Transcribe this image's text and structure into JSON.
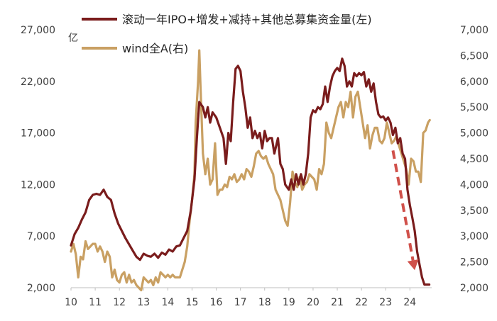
{
  "chart_data": {
    "type": "line",
    "title": "",
    "unit_left": "亿",
    "legend": [
      {
        "name": "滚动一年IPO+增发+减持+其他总募集资金量(左)",
        "color": "#7a1c1c"
      },
      {
        "name": "wind全A(右)",
        "color": "#c9a063"
      }
    ],
    "x_ticks": [
      "10",
      "11",
      "12",
      "13",
      "14",
      "15",
      "16",
      "17",
      "18",
      "19",
      "20",
      "21",
      "22",
      "23",
      "24"
    ],
    "x_range": [
      2010.0,
      2024.9
    ],
    "y_left": {
      "range": [
        2000,
        27000
      ],
      "ticks": [
        "2,000",
        "7,000",
        "12,000",
        "17,000",
        "22,000",
        "27,000"
      ],
      "tick_values": [
        2000,
        7000,
        12000,
        17000,
        22000,
        27000
      ]
    },
    "y_right": {
      "range": [
        2000,
        7000
      ],
      "ticks": [
        "2,000",
        "2,500",
        "3,000",
        "3,500",
        "4,000",
        "4,500",
        "5,000",
        "5,500",
        "6,000",
        "6,500",
        "7,000"
      ],
      "tick_values": [
        2000,
        2500,
        3000,
        3500,
        4000,
        4500,
        5000,
        5500,
        6000,
        6500,
        7000
      ]
    },
    "series": [
      {
        "name": "滚动一年IPO+增发+减持+其他总募集资金量(左)",
        "axis": "left",
        "color": "#7a1c1c",
        "points": [
          [
            2010.0,
            6100
          ],
          [
            2010.15,
            7200
          ],
          [
            2010.3,
            7800
          ],
          [
            2010.45,
            8600
          ],
          [
            2010.6,
            9300
          ],
          [
            2010.75,
            10500
          ],
          [
            2010.9,
            11000
          ],
          [
            2011.05,
            11100
          ],
          [
            2011.2,
            11000
          ],
          [
            2011.35,
            11500
          ],
          [
            2011.5,
            10800
          ],
          [
            2011.65,
            10500
          ],
          [
            2011.8,
            9200
          ],
          [
            2011.95,
            8200
          ],
          [
            2012.1,
            7500
          ],
          [
            2012.25,
            6800
          ],
          [
            2012.4,
            6200
          ],
          [
            2012.55,
            5600
          ],
          [
            2012.7,
            5000
          ],
          [
            2012.85,
            4700
          ],
          [
            2013.0,
            5300
          ],
          [
            2013.15,
            5100
          ],
          [
            2013.3,
            5000
          ],
          [
            2013.45,
            5300
          ],
          [
            2013.6,
            4900
          ],
          [
            2013.75,
            5400
          ],
          [
            2013.9,
            5200
          ],
          [
            2014.05,
            5700
          ],
          [
            2014.2,
            5500
          ],
          [
            2014.35,
            6000
          ],
          [
            2014.5,
            6100
          ],
          [
            2014.65,
            6800
          ],
          [
            2014.8,
            7500
          ],
          [
            2014.95,
            9500
          ],
          [
            2015.1,
            12500
          ],
          [
            2015.2,
            16500
          ],
          [
            2015.3,
            20000
          ],
          [
            2015.45,
            19500
          ],
          [
            2015.55,
            18500
          ],
          [
            2015.65,
            19500
          ],
          [
            2015.75,
            18000
          ],
          [
            2015.85,
            19000
          ],
          [
            2016.0,
            18500
          ],
          [
            2016.15,
            17500
          ],
          [
            2016.3,
            16500
          ],
          [
            2016.4,
            14000
          ],
          [
            2016.5,
            17000
          ],
          [
            2016.6,
            16200
          ],
          [
            2016.7,
            20000
          ],
          [
            2016.8,
            23200
          ],
          [
            2016.9,
            23500
          ],
          [
            2017.0,
            23000
          ],
          [
            2017.1,
            21000
          ],
          [
            2017.2,
            19500
          ],
          [
            2017.3,
            17500
          ],
          [
            2017.4,
            18500
          ],
          [
            2017.5,
            16500
          ],
          [
            2017.6,
            17200
          ],
          [
            2017.7,
            16500
          ],
          [
            2017.8,
            17000
          ],
          [
            2017.9,
            15500
          ],
          [
            2018.0,
            17200
          ],
          [
            2018.1,
            16200
          ],
          [
            2018.2,
            16500
          ],
          [
            2018.3,
            16500
          ],
          [
            2018.4,
            15000
          ],
          [
            2018.55,
            16500
          ],
          [
            2018.65,
            14000
          ],
          [
            2018.75,
            13500
          ],
          [
            2018.85,
            12000
          ],
          [
            2019.0,
            11500
          ],
          [
            2019.1,
            12500
          ],
          [
            2019.2,
            11500
          ],
          [
            2019.3,
            13000
          ],
          [
            2019.4,
            12000
          ],
          [
            2019.5,
            13000
          ],
          [
            2019.6,
            12000
          ],
          [
            2019.7,
            13000
          ],
          [
            2019.8,
            15000
          ],
          [
            2019.9,
            18500
          ],
          [
            2020.0,
            19200
          ],
          [
            2020.1,
            19000
          ],
          [
            2020.2,
            19500
          ],
          [
            2020.3,
            19300
          ],
          [
            2020.4,
            19800
          ],
          [
            2020.5,
            21500
          ],
          [
            2020.6,
            20000
          ],
          [
            2020.7,
            21500
          ],
          [
            2020.8,
            22500
          ],
          [
            2020.9,
            23000
          ],
          [
            2021.0,
            23300
          ],
          [
            2021.1,
            23000
          ],
          [
            2021.2,
            24200
          ],
          [
            2021.3,
            23500
          ],
          [
            2021.4,
            21500
          ],
          [
            2021.5,
            22000
          ],
          [
            2021.6,
            21500
          ],
          [
            2021.7,
            22800
          ],
          [
            2021.8,
            22500
          ],
          [
            2021.9,
            22800
          ],
          [
            2022.0,
            22600
          ],
          [
            2022.1,
            22900
          ],
          [
            2022.2,
            21500
          ],
          [
            2022.3,
            22200
          ],
          [
            2022.4,
            21000
          ],
          [
            2022.5,
            21800
          ],
          [
            2022.6,
            20000
          ],
          [
            2022.7,
            18800
          ],
          [
            2022.8,
            18500
          ],
          [
            2022.9,
            18600
          ],
          [
            2023.0,
            18200
          ],
          [
            2023.1,
            18500
          ],
          [
            2023.2,
            18000
          ],
          [
            2023.3,
            16800
          ],
          [
            2023.4,
            17500
          ],
          [
            2023.5,
            16000
          ],
          [
            2023.6,
            16500
          ],
          [
            2023.7,
            15000
          ],
          [
            2023.8,
            14500
          ],
          [
            2023.9,
            11500
          ],
          [
            2024.0,
            10000
          ],
          [
            2024.1,
            8800
          ],
          [
            2024.2,
            7500
          ],
          [
            2024.3,
            5500
          ],
          [
            2024.4,
            4200
          ],
          [
            2024.5,
            3000
          ],
          [
            2024.6,
            2300
          ],
          [
            2024.7,
            2300
          ],
          [
            2024.8,
            2300
          ]
        ]
      },
      {
        "name": "wind全A(右)",
        "axis": "right",
        "color": "#c9a063",
        "points": [
          [
            2010.0,
            2700
          ],
          [
            2010.1,
            2850
          ],
          [
            2010.2,
            2650
          ],
          [
            2010.3,
            2200
          ],
          [
            2010.4,
            2600
          ],
          [
            2010.5,
            2550
          ],
          [
            2010.6,
            2900
          ],
          [
            2010.7,
            2750
          ],
          [
            2010.8,
            2800
          ],
          [
            2010.9,
            2850
          ],
          [
            2011.0,
            2850
          ],
          [
            2011.1,
            2700
          ],
          [
            2011.2,
            2800
          ],
          [
            2011.3,
            2700
          ],
          [
            2011.4,
            2500
          ],
          [
            2011.5,
            2700
          ],
          [
            2011.6,
            2600
          ],
          [
            2011.7,
            2200
          ],
          [
            2011.8,
            2350
          ],
          [
            2011.9,
            2150
          ],
          [
            2012.0,
            2100
          ],
          [
            2012.1,
            2250
          ],
          [
            2012.2,
            2300
          ],
          [
            2012.3,
            2100
          ],
          [
            2012.4,
            2250
          ],
          [
            2012.5,
            2100
          ],
          [
            2012.6,
            2150
          ],
          [
            2012.7,
            2050
          ],
          [
            2012.8,
            2000
          ],
          [
            2012.9,
            1950
          ],
          [
            2013.0,
            2200
          ],
          [
            2013.1,
            2150
          ],
          [
            2013.2,
            2100
          ],
          [
            2013.3,
            2150
          ],
          [
            2013.4,
            2050
          ],
          [
            2013.5,
            2200
          ],
          [
            2013.6,
            2100
          ],
          [
            2013.7,
            2300
          ],
          [
            2013.8,
            2250
          ],
          [
            2013.9,
            2200
          ],
          [
            2014.0,
            2250
          ],
          [
            2014.1,
            2200
          ],
          [
            2014.2,
            2250
          ],
          [
            2014.3,
            2200
          ],
          [
            2014.4,
            2200
          ],
          [
            2014.5,
            2200
          ],
          [
            2014.6,
            2350
          ],
          [
            2014.7,
            2500
          ],
          [
            2014.8,
            2800
          ],
          [
            2014.9,
            3300
          ],
          [
            2015.0,
            3700
          ],
          [
            2015.1,
            4200
          ],
          [
            2015.15,
            5200
          ],
          [
            2015.25,
            6000
          ],
          [
            2015.3,
            6600
          ],
          [
            2015.35,
            5900
          ],
          [
            2015.45,
            4600
          ],
          [
            2015.55,
            4200
          ],
          [
            2015.65,
            4500
          ],
          [
            2015.75,
            4000
          ],
          [
            2015.85,
            4100
          ],
          [
            2015.95,
            4800
          ],
          [
            2016.05,
            3800
          ],
          [
            2016.15,
            3900
          ],
          [
            2016.25,
            3900
          ],
          [
            2016.35,
            4000
          ],
          [
            2016.45,
            3950
          ],
          [
            2016.55,
            4150
          ],
          [
            2016.65,
            4100
          ],
          [
            2016.75,
            4200
          ],
          [
            2016.85,
            4050
          ],
          [
            2016.95,
            4100
          ],
          [
            2017.05,
            4200
          ],
          [
            2017.15,
            4100
          ],
          [
            2017.25,
            4300
          ],
          [
            2017.35,
            4250
          ],
          [
            2017.45,
            4150
          ],
          [
            2017.55,
            4350
          ],
          [
            2017.65,
            4600
          ],
          [
            2017.75,
            4650
          ],
          [
            2017.85,
            4550
          ],
          [
            2017.95,
            4500
          ],
          [
            2018.05,
            4550
          ],
          [
            2018.15,
            4400
          ],
          [
            2018.25,
            4300
          ],
          [
            2018.35,
            4200
          ],
          [
            2018.45,
            3900
          ],
          [
            2018.55,
            3800
          ],
          [
            2018.65,
            3700
          ],
          [
            2018.75,
            3500
          ],
          [
            2018.85,
            3300
          ],
          [
            2018.95,
            3200
          ],
          [
            2019.05,
            3650
          ],
          [
            2019.15,
            4250
          ],
          [
            2019.25,
            4050
          ],
          [
            2019.35,
            3950
          ],
          [
            2019.45,
            4150
          ],
          [
            2019.55,
            3900
          ],
          [
            2019.65,
            4000
          ],
          [
            2019.75,
            4050
          ],
          [
            2019.85,
            4200
          ],
          [
            2019.95,
            4150
          ],
          [
            2020.05,
            4100
          ],
          [
            2020.15,
            3900
          ],
          [
            2020.25,
            4300
          ],
          [
            2020.35,
            4200
          ],
          [
            2020.45,
            4400
          ],
          [
            2020.55,
            5200
          ],
          [
            2020.65,
            5000
          ],
          [
            2020.75,
            4900
          ],
          [
            2020.85,
            5100
          ],
          [
            2020.95,
            5300
          ],
          [
            2021.05,
            5500
          ],
          [
            2021.15,
            5600
          ],
          [
            2021.25,
            5300
          ],
          [
            2021.35,
            5600
          ],
          [
            2021.45,
            5500
          ],
          [
            2021.55,
            5800
          ],
          [
            2021.65,
            5300
          ],
          [
            2021.75,
            5700
          ],
          [
            2021.85,
            5800
          ],
          [
            2021.95,
            5500
          ],
          [
            2022.05,
            5200
          ],
          [
            2022.15,
            4900
          ],
          [
            2022.25,
            5150
          ],
          [
            2022.35,
            4700
          ],
          [
            2022.45,
            4950
          ],
          [
            2022.55,
            5100
          ],
          [
            2022.65,
            5100
          ],
          [
            2022.75,
            4850
          ],
          [
            2022.85,
            4800
          ],
          [
            2022.95,
            4900
          ],
          [
            2023.05,
            5200
          ],
          [
            2023.15,
            5000
          ],
          [
            2023.25,
            4800
          ],
          [
            2023.35,
            4850
          ],
          [
            2023.45,
            4950
          ],
          [
            2023.55,
            4750
          ],
          [
            2023.65,
            4600
          ],
          [
            2023.75,
            4450
          ],
          [
            2023.85,
            4300
          ],
          [
            2023.95,
            4000
          ],
          [
            2024.05,
            4500
          ],
          [
            2024.15,
            4450
          ],
          [
            2024.25,
            4250
          ],
          [
            2024.35,
            4250
          ],
          [
            2024.45,
            4050
          ],
          [
            2024.55,
            5000
          ],
          [
            2024.65,
            5050
          ],
          [
            2024.75,
            5200
          ],
          [
            2024.82,
            5250
          ]
        ]
      }
    ],
    "annotations": [
      {
        "type": "dashed-arrow",
        "color": "#d0504a",
        "from": [
          2023.3,
          15300
        ],
        "to": [
          2024.2,
          3700
        ],
        "axis": "left"
      }
    ]
  }
}
